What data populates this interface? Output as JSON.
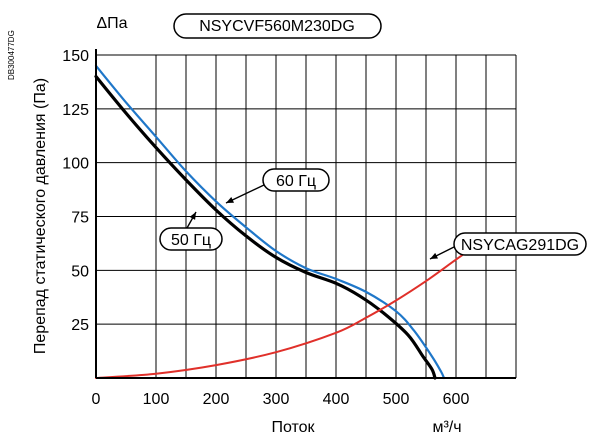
{
  "chart_data": {
    "type": "line",
    "model_label": "NSYCVF560M230DG",
    "doc_code": "DB300477DG",
    "ylabel": "Перепад статического давления (Па)",
    "ylabel_top": "ΔПа",
    "xlabel": "Поток",
    "xunit": "м³/ч",
    "xlim": [
      0,
      700
    ],
    "ylim": [
      0,
      150
    ],
    "xticks": [
      0,
      100,
      200,
      300,
      400,
      500,
      600
    ],
    "yticks": [
      25,
      50,
      75,
      100,
      125,
      150
    ],
    "grid": true,
    "colors": {
      "curve_60hz": "#1f77c9",
      "curve_50hz": "#000000",
      "system_curve": "#e0302a"
    },
    "series": [
      {
        "name": "60 Гц",
        "x": [
          0,
          50,
          100,
          150,
          200,
          250,
          300,
          350,
          400,
          450,
          500,
          530,
          560,
          575,
          580
        ],
        "y": [
          145,
          128,
          112,
          96,
          82,
          70,
          59,
          51,
          46,
          40,
          31,
          22,
          10,
          3,
          0
        ]
      },
      {
        "name": "50 Гц",
        "x": [
          0,
          50,
          100,
          150,
          200,
          250,
          300,
          350,
          400,
          440,
          480,
          520,
          545,
          560,
          565
        ],
        "y": [
          140,
          123,
          107,
          92,
          78,
          66,
          56,
          49,
          44,
          38,
          30,
          20,
          10,
          4,
          0
        ]
      },
      {
        "name": "NSYCAG291DG",
        "x": [
          0,
          100,
          200,
          300,
          400,
          450,
          500,
          550,
          600,
          640
        ],
        "y": [
          0,
          2,
          6,
          12,
          21,
          28,
          36,
          45,
          55,
          63
        ]
      }
    ],
    "annotations": [
      "60 Гц",
      "50 Гц",
      "NSYCAG291DG"
    ]
  }
}
